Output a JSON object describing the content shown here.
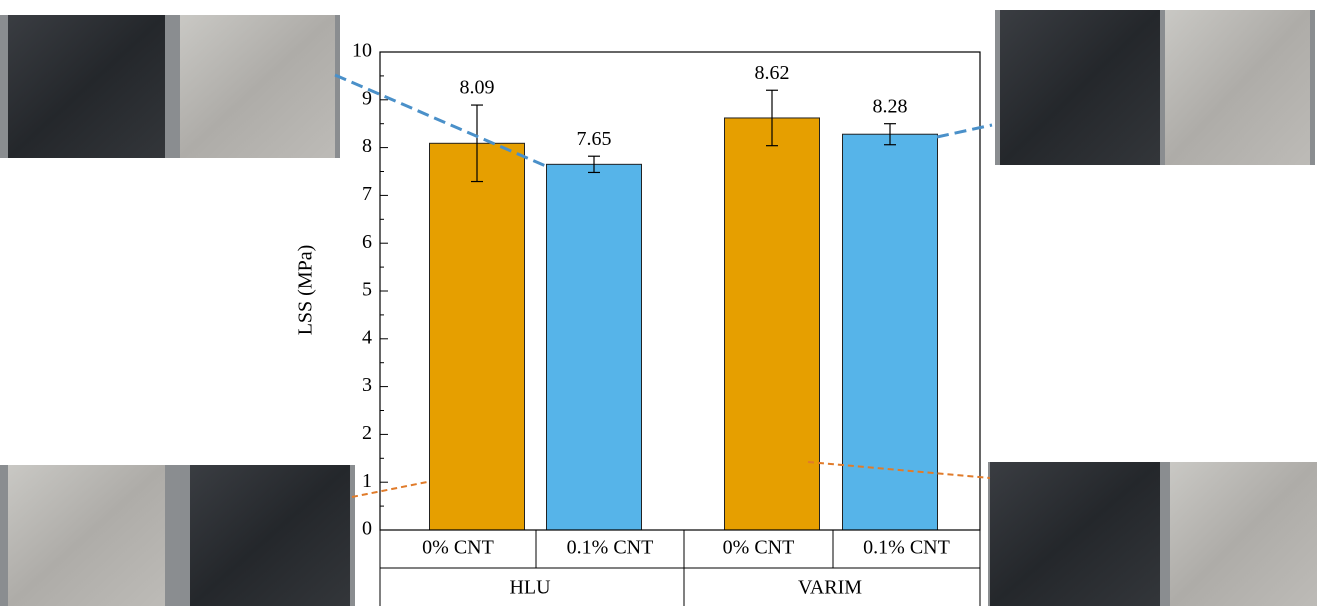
{
  "chart_data": {
    "type": "bar",
    "y_label": "LSS (MPa)",
    "categories": [
      "0% CNT",
      "0.1% CNT",
      "0% CNT",
      "0.1% CNT"
    ],
    "groups": [
      "HLU",
      "VARIM"
    ],
    "values": [
      8.09,
      7.65,
      8.62,
      8.28
    ],
    "errors": [
      0.8,
      0.17,
      0.58,
      0.22
    ],
    "colors": [
      "#e69f00",
      "#56b4e9",
      "#e69f00",
      "#56b4e9"
    ],
    "ylim": [
      0,
      10
    ],
    "yticks": [
      0,
      1,
      2,
      3,
      4,
      5,
      6,
      7,
      8,
      9,
      10
    ]
  }
}
